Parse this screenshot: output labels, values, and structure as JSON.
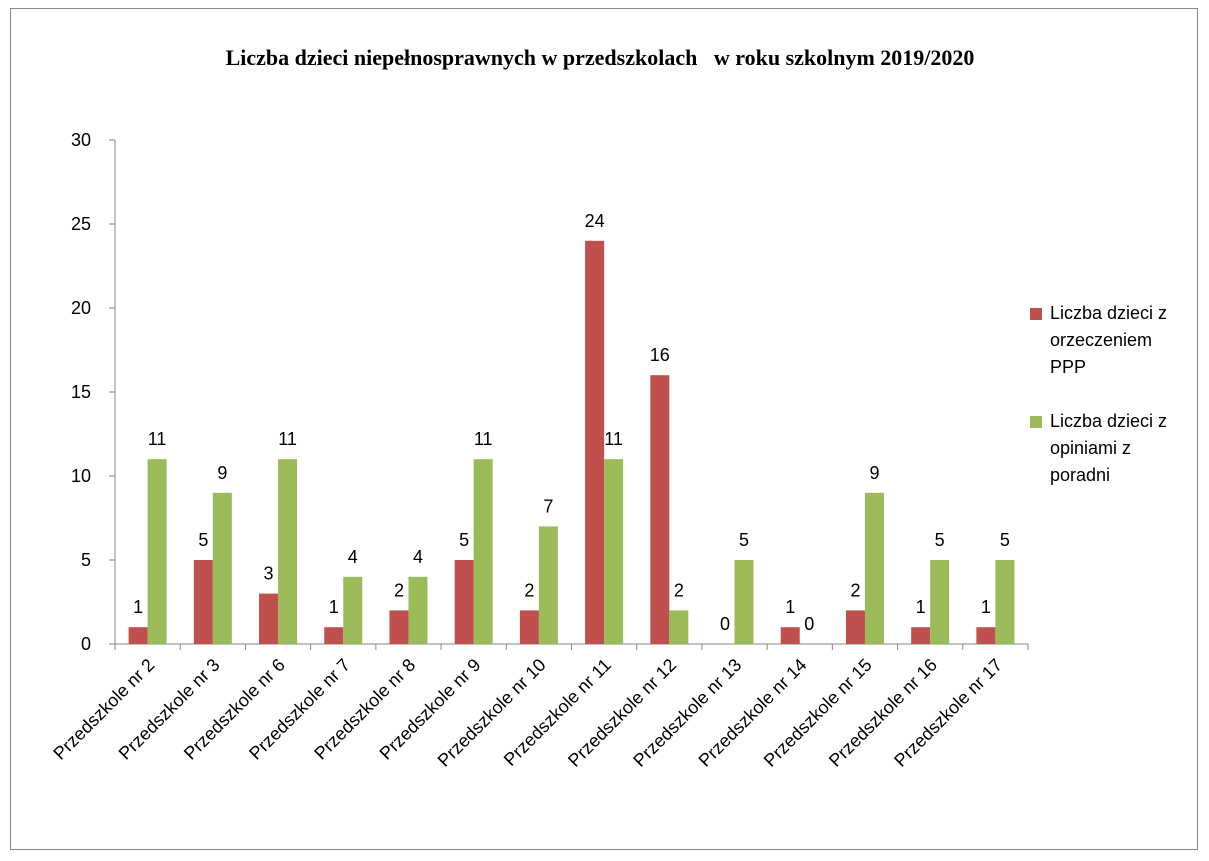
{
  "chart_data": {
    "type": "bar",
    "title": "Liczba dzieci niepełnosprawnych w przedszkolach   w roku szkolnym 2019/2020",
    "categories": [
      "Przedszkole nr 2",
      "Przedszkole nr 3",
      "Przedszkole nr 6",
      "Przedszkole nr 7",
      "Przedszkole nr 8",
      "Przedszkole nr 9",
      "Przedszkole nr 10",
      "Przedszkole nr 11",
      "Przedszkole nr 12",
      "Przedszkole nr 13",
      "Przedszkole nr 14",
      "Przedszkole nr 15",
      "Przedszkole nr 16",
      "Przedszkole nr 17"
    ],
    "series": [
      {
        "name": "Liczba dzieci z orzeczeniem PPP",
        "color": "#c0504d",
        "values": [
          1,
          5,
          3,
          1,
          2,
          5,
          2,
          24,
          16,
          0,
          1,
          2,
          1,
          1
        ]
      },
      {
        "name": "Liczba dzieci z opiniami z poradni",
        "color": "#9bbb59",
        "values": [
          11,
          9,
          11,
          4,
          4,
          11,
          7,
          11,
          2,
          5,
          0,
          9,
          5,
          5
        ]
      }
    ],
    "ylim": [
      0,
      30
    ],
    "yticks": [
      0,
      5,
      10,
      15,
      20,
      25,
      30
    ],
    "grid": false,
    "legend": "right"
  }
}
